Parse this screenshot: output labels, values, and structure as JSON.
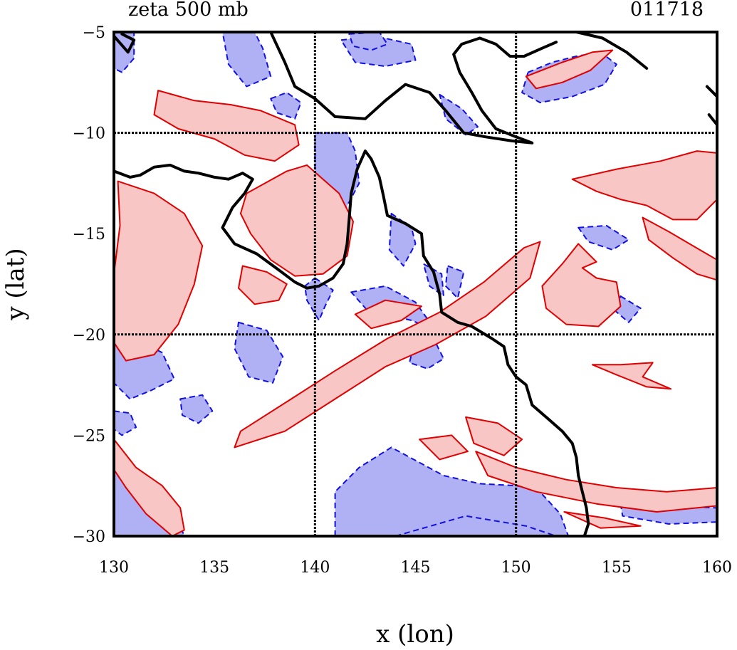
{
  "header": {
    "title": "zeta 500 mb",
    "timestamp": "011718"
  },
  "axes": {
    "xlabel": "x (lon)",
    "ylabel": "y (lat)",
    "xlim": [
      130,
      160
    ],
    "ylim": [
      -30,
      -5
    ],
    "xticks": [
      130,
      135,
      140,
      145,
      150,
      155,
      160
    ],
    "yticks": [
      -5,
      -10,
      -15,
      -20,
      -25,
      -30
    ],
    "xtick_labels": [
      "130",
      "135",
      "140",
      "145",
      "150",
      "155",
      "160"
    ],
    "ytick_labels": [
      "−5",
      "−10",
      "−15",
      "−20",
      "−25",
      "−30"
    ],
    "gridlines": {
      "lon": [
        140,
        150
      ],
      "lat": [
        -10,
        -20
      ],
      "style": "dotted"
    }
  },
  "colors": {
    "positive_fill": "#f9c6c6",
    "positive_line": "#e00000",
    "negative_fill": "#b0b0f4",
    "negative_line": "#1010e0",
    "coastline": "#000000",
    "grid": "#000000"
  },
  "coastline": [
    [
      [
        130.0,
        -11.9
      ],
      [
        130.8,
        -12.2
      ],
      [
        131.3,
        -12.1
      ],
      [
        132.0,
        -11.7
      ],
      [
        132.8,
        -11.6
      ],
      [
        133.5,
        -11.9
      ],
      [
        134.2,
        -12.0
      ],
      [
        135.0,
        -12.2
      ],
      [
        135.7,
        -12.3
      ],
      [
        136.4,
        -12.0
      ],
      [
        136.9,
        -12.3
      ],
      [
        136.5,
        -13.0
      ],
      [
        135.9,
        -13.7
      ],
      [
        135.4,
        -14.7
      ],
      [
        136.0,
        -15.5
      ],
      [
        137.1,
        -16.0
      ],
      [
        138.2,
        -16.8
      ],
      [
        139.0,
        -17.4
      ],
      [
        139.6,
        -17.7
      ],
      [
        140.2,
        -17.6
      ],
      [
        140.9,
        -17.2
      ],
      [
        141.4,
        -16.5
      ],
      [
        141.6,
        -15.5
      ],
      [
        141.7,
        -14.3
      ],
      [
        141.8,
        -13.0
      ],
      [
        142.1,
        -11.8
      ],
      [
        142.5,
        -10.9
      ],
      [
        142.8,
        -11.3
      ],
      [
        143.2,
        -12.2
      ],
      [
        143.4,
        -13.1
      ],
      [
        143.6,
        -14.1
      ],
      [
        144.5,
        -14.5
      ],
      [
        145.3,
        -15.0
      ],
      [
        145.4,
        -16.1
      ],
      [
        145.9,
        -16.9
      ],
      [
        146.2,
        -18.0
      ],
      [
        146.3,
        -18.9
      ],
      [
        147.1,
        -19.4
      ],
      [
        147.8,
        -19.6
      ],
      [
        148.8,
        -20.2
      ],
      [
        149.4,
        -20.6
      ],
      [
        149.6,
        -21.5
      ],
      [
        150.0,
        -22.1
      ],
      [
        150.5,
        -22.5
      ],
      [
        150.8,
        -23.5
      ],
      [
        151.5,
        -24.1
      ],
      [
        152.3,
        -24.8
      ],
      [
        152.8,
        -25.4
      ],
      [
        153.0,
        -26.1
      ],
      [
        153.1,
        -27.0
      ],
      [
        153.3,
        -27.8
      ],
      [
        153.5,
        -28.6
      ],
      [
        153.6,
        -29.4
      ],
      [
        153.4,
        -30.0
      ]
    ],
    [
      [
        141.0,
        -9.2
      ],
      [
        142.5,
        -9.3
      ],
      [
        143.5,
        -8.4
      ],
      [
        144.5,
        -7.6
      ],
      [
        145.7,
        -8.0
      ],
      [
        146.5,
        -8.9
      ],
      [
        147.4,
        -10.0
      ],
      [
        148.5,
        -10.2
      ],
      [
        149.8,
        -10.4
      ],
      [
        150.8,
        -10.5
      ],
      [
        150.0,
        -10.2
      ],
      [
        149.0,
        -9.8
      ],
      [
        148.3,
        -8.9
      ],
      [
        147.8,
        -8.0
      ],
      [
        147.2,
        -7.0
      ],
      [
        146.9,
        -6.1
      ],
      [
        147.3,
        -5.6
      ],
      [
        148.2,
        -5.3
      ],
      [
        149.0,
        -5.6
      ],
      [
        149.7,
        -6.2
      ],
      [
        150.4,
        -6.2
      ],
      [
        151.3,
        -5.8
      ],
      [
        152.0,
        -5.5
      ]
    ],
    [
      [
        137.8,
        -5.0
      ],
      [
        138.5,
        -6.5
      ],
      [
        139.0,
        -7.7
      ],
      [
        140.0,
        -8.3
      ],
      [
        141.0,
        -9.2
      ]
    ],
    [
      [
        153.0,
        -5.0
      ],
      [
        154.3,
        -5.3
      ],
      [
        155.5,
        -6.0
      ],
      [
        156.5,
        -6.8
      ]
    ],
    [
      [
        159.5,
        -7.7
      ],
      [
        160.0,
        -8.2
      ]
    ],
    [
      [
        130.0,
        -5.2
      ],
      [
        130.7,
        -6.0
      ],
      [
        131.0,
        -5.4
      ],
      [
        130.4,
        -5.1
      ]
    ],
    [
      [
        159.6,
        -9.1
      ],
      [
        160.0,
        -9.6
      ]
    ]
  ],
  "positive_regions": [
    [
      [
        130.2,
        -12.4
      ],
      [
        132.0,
        -13.0
      ],
      [
        133.5,
        -14.0
      ],
      [
        134.4,
        -15.6
      ],
      [
        134.0,
        -17.5
      ],
      [
        133.2,
        -19.5
      ],
      [
        132.0,
        -21.0
      ],
      [
        130.6,
        -21.3
      ],
      [
        130.0,
        -20.4
      ],
      [
        130.0,
        -17.0
      ],
      [
        130.3,
        -14.6
      ]
    ],
    [
      [
        132.2,
        -7.9
      ],
      [
        134.0,
        -8.4
      ],
      [
        135.8,
        -8.6
      ],
      [
        137.3,
        -8.9
      ],
      [
        139.0,
        -9.6
      ],
      [
        139.2,
        -10.6
      ],
      [
        138.0,
        -11.4
      ],
      [
        136.5,
        -11.1
      ],
      [
        135.0,
        -10.3
      ],
      [
        133.2,
        -9.8
      ],
      [
        132.0,
        -9.1
      ]
    ],
    [
      [
        136.6,
        -13.0
      ],
      [
        138.6,
        -11.9
      ],
      [
        139.6,
        -11.6
      ],
      [
        141.2,
        -13.0
      ],
      [
        141.9,
        -14.4
      ],
      [
        141.6,
        -16.1
      ],
      [
        140.4,
        -17.0
      ],
      [
        139.0,
        -17.1
      ],
      [
        137.8,
        -16.3
      ],
      [
        136.8,
        -15.0
      ],
      [
        136.3,
        -14.0
      ]
    ],
    [
      [
        136.4,
        -16.6
      ],
      [
        137.6,
        -16.9
      ],
      [
        138.6,
        -17.5
      ],
      [
        138.2,
        -18.3
      ],
      [
        137.0,
        -18.5
      ],
      [
        136.2,
        -17.7
      ]
    ],
    [
      [
        130.0,
        -25.2
      ],
      [
        131.1,
        -26.6
      ],
      [
        132.4,
        -27.5
      ],
      [
        133.3,
        -28.6
      ],
      [
        133.5,
        -29.7
      ],
      [
        132.9,
        -30.0
      ],
      [
        131.6,
        -28.9
      ],
      [
        130.6,
        -27.6
      ],
      [
        130.0,
        -26.7
      ]
    ],
    [
      [
        136.0,
        -25.6
      ],
      [
        138.5,
        -24.8
      ],
      [
        141.0,
        -23.2
      ],
      [
        143.5,
        -21.6
      ],
      [
        146.0,
        -20.5
      ],
      [
        148.5,
        -19.1
      ],
      [
        150.7,
        -17.2
      ],
      [
        151.2,
        -15.4
      ],
      [
        150.4,
        -15.7
      ],
      [
        148.4,
        -17.4
      ],
      [
        146.2,
        -18.9
      ],
      [
        143.6,
        -20.2
      ],
      [
        141.0,
        -21.8
      ],
      [
        138.5,
        -23.4
      ],
      [
        136.3,
        -24.8
      ]
    ],
    [
      [
        142.0,
        -19.0
      ],
      [
        143.5,
        -18.3
      ],
      [
        145.3,
        -18.6
      ],
      [
        144.3,
        -19.3
      ],
      [
        142.8,
        -19.7
      ]
    ],
    [
      [
        148.0,
        -25.8
      ],
      [
        150.0,
        -26.6
      ],
      [
        152.5,
        -27.2
      ],
      [
        155.0,
        -27.6
      ],
      [
        157.5,
        -27.8
      ],
      [
        160.0,
        -27.6
      ],
      [
        160.0,
        -28.5
      ],
      [
        157.0,
        -28.8
      ],
      [
        154.0,
        -28.4
      ],
      [
        151.0,
        -27.8
      ],
      [
        148.6,
        -27.0
      ]
    ],
    [
      [
        147.5,
        -24.1
      ],
      [
        149.1,
        -24.4
      ],
      [
        150.3,
        -25.2
      ],
      [
        149.4,
        -26.0
      ],
      [
        147.9,
        -25.4
      ]
    ],
    [
      [
        145.2,
        -25.2
      ],
      [
        146.8,
        -25.0
      ],
      [
        147.6,
        -25.8
      ],
      [
        146.2,
        -26.2
      ]
    ],
    [
      [
        152.8,
        -12.3
      ],
      [
        155.0,
        -11.8
      ],
      [
        157.2,
        -11.4
      ],
      [
        159.0,
        -10.9
      ],
      [
        160.0,
        -11.0
      ],
      [
        160.0,
        -13.3
      ],
      [
        159.0,
        -14.3
      ],
      [
        157.8,
        -14.3
      ],
      [
        156.5,
        -13.6
      ],
      [
        155.2,
        -13.3
      ],
      [
        154.0,
        -12.9
      ]
    ],
    [
      [
        156.3,
        -14.2
      ],
      [
        157.6,
        -14.9
      ],
      [
        158.8,
        -15.6
      ],
      [
        160.0,
        -16.3
      ],
      [
        160.0,
        -17.3
      ],
      [
        159.0,
        -17.0
      ],
      [
        157.8,
        -16.2
      ],
      [
        156.6,
        -15.3
      ]
    ],
    [
      [
        151.3,
        -17.6
      ],
      [
        152.3,
        -16.5
      ],
      [
        153.1,
        -15.5
      ],
      [
        154.0,
        -16.4
      ],
      [
        153.3,
        -16.7
      ],
      [
        154.0,
        -17.2
      ],
      [
        155.0,
        -17.4
      ],
      [
        155.2,
        -18.6
      ],
      [
        154.1,
        -19.6
      ],
      [
        152.5,
        -19.5
      ],
      [
        151.5,
        -18.7
      ]
    ],
    [
      [
        153.8,
        -21.5
      ],
      [
        155.2,
        -21.5
      ],
      [
        156.8,
        -21.4
      ],
      [
        156.3,
        -22.1
      ],
      [
        157.7,
        -22.7
      ],
      [
        156.5,
        -22.6
      ],
      [
        155.0,
        -22.0
      ]
    ],
    [
      [
        150.5,
        -7.2
      ],
      [
        152.3,
        -6.5
      ],
      [
        153.8,
        -6.0
      ],
      [
        154.8,
        -5.9
      ],
      [
        153.7,
        -6.9
      ],
      [
        152.3,
        -7.5
      ],
      [
        151.0,
        -7.8
      ]
    ],
    [
      [
        152.4,
        -28.8
      ],
      [
        154.4,
        -29.1
      ],
      [
        156.2,
        -29.5
      ],
      [
        154.2,
        -29.6
      ]
    ]
  ],
  "negative_regions": [
    [
      [
        130.0,
        -5.0
      ],
      [
        131.0,
        -5.0
      ],
      [
        131.0,
        -6.3
      ],
      [
        130.4,
        -7.0
      ],
      [
        130.0,
        -6.8
      ]
    ],
    [
      [
        135.4,
        -5.0
      ],
      [
        137.0,
        -5.0
      ],
      [
        137.4,
        -5.8
      ],
      [
        137.8,
        -7.2
      ],
      [
        136.6,
        -7.7
      ],
      [
        135.7,
        -6.6
      ]
    ],
    [
      [
        141.3,
        -5.4
      ],
      [
        143.0,
        -5.2
      ],
      [
        144.8,
        -5.6
      ],
      [
        145.0,
        -6.4
      ],
      [
        143.5,
        -6.7
      ],
      [
        142.0,
        -6.5
      ]
    ],
    [
      [
        140.0,
        -10.0
      ],
      [
        141.6,
        -10.0
      ],
      [
        142.0,
        -10.9
      ],
      [
        142.2,
        -12.5
      ],
      [
        141.5,
        -13.8
      ],
      [
        140.8,
        -14.7
      ],
      [
        140.0,
        -14.1
      ]
    ],
    [
      [
        140.0,
        -17.2
      ],
      [
        140.9,
        -17.8
      ],
      [
        140.5,
        -18.6
      ],
      [
        140.2,
        -19.3
      ],
      [
        139.6,
        -18.3
      ],
      [
        139.5,
        -17.6
      ]
    ],
    [
      [
        141.8,
        -17.9
      ],
      [
        143.5,
        -17.6
      ],
      [
        145.0,
        -18.4
      ],
      [
        146.0,
        -19.8
      ],
      [
        144.8,
        -19.3
      ],
      [
        142.6,
        -18.8
      ]
    ],
    [
      [
        143.8,
        -14.0
      ],
      [
        144.8,
        -14.7
      ],
      [
        145.0,
        -15.5
      ],
      [
        144.4,
        -16.6
      ],
      [
        143.7,
        -15.8
      ]
    ],
    [
      [
        145.4,
        -16.5
      ],
      [
        146.3,
        -17.0
      ],
      [
        146.4,
        -18.1
      ],
      [
        145.7,
        -17.6
      ]
    ],
    [
      [
        130.0,
        -20.0
      ],
      [
        131.2,
        -20.3
      ],
      [
        132.4,
        -20.9
      ],
      [
        133.0,
        -22.2
      ],
      [
        131.8,
        -22.8
      ],
      [
        130.8,
        -23.2
      ],
      [
        130.0,
        -22.4
      ]
    ],
    [
      [
        130.0,
        -26.6
      ],
      [
        130.6,
        -27.6
      ],
      [
        132.0,
        -28.6
      ],
      [
        133.3,
        -29.5
      ],
      [
        133.5,
        -30.0
      ],
      [
        130.0,
        -30.0
      ]
    ],
    [
      [
        136.2,
        -19.4
      ],
      [
        137.6,
        -19.8
      ],
      [
        138.4,
        -21.1
      ],
      [
        137.9,
        -22.4
      ],
      [
        136.7,
        -22.1
      ],
      [
        136.0,
        -20.7
      ]
    ],
    [
      [
        141.0,
        -30.0
      ],
      [
        141.0,
        -27.8
      ],
      [
        142.2,
        -26.6
      ],
      [
        143.8,
        -25.6
      ],
      [
        145.1,
        -26.3
      ],
      [
        146.4,
        -27.0
      ],
      [
        148.2,
        -27.4
      ],
      [
        150.0,
        -27.5
      ],
      [
        151.1,
        -27.7
      ],
      [
        152.2,
        -28.9
      ],
      [
        152.6,
        -30.0
      ]
    ],
    [
      [
        144.0,
        -30.0
      ],
      [
        147.5,
        -29.0
      ],
      [
        150.5,
        -29.5
      ],
      [
        152.0,
        -30.0
      ]
    ],
    [
      [
        155.2,
        -28.4
      ],
      [
        157.4,
        -28.5
      ],
      [
        160.0,
        -28.6
      ],
      [
        160.0,
        -29.3
      ],
      [
        157.6,
        -29.4
      ],
      [
        155.3,
        -29.0
      ]
    ],
    [
      [
        150.6,
        -7.0
      ],
      [
        151.8,
        -6.5
      ],
      [
        153.0,
        -6.2
      ],
      [
        154.2,
        -6.0
      ],
      [
        155.0,
        -6.6
      ],
      [
        154.4,
        -7.6
      ],
      [
        152.8,
        -8.2
      ],
      [
        151.2,
        -8.5
      ],
      [
        150.3,
        -8.0
      ]
    ],
    [
      [
        146.2,
        -8.1
      ],
      [
        147.3,
        -8.8
      ],
      [
        148.1,
        -9.7
      ],
      [
        147.5,
        -10.1
      ],
      [
        146.5,
        -9.3
      ]
    ],
    [
      [
        153.1,
        -14.7
      ],
      [
        154.5,
        -14.6
      ],
      [
        155.6,
        -15.3
      ],
      [
        154.8,
        -15.8
      ],
      [
        153.6,
        -15.4
      ]
    ],
    [
      [
        155.2,
        -18.1
      ],
      [
        156.2,
        -18.7
      ],
      [
        155.6,
        -19.4
      ],
      [
        154.9,
        -18.8
      ]
    ],
    [
      [
        146.6,
        -16.6
      ],
      [
        147.4,
        -16.9
      ],
      [
        147.1,
        -18.2
      ],
      [
        146.5,
        -17.6
      ]
    ],
    [
      [
        144.9,
        -20.6
      ],
      [
        145.9,
        -20.2
      ],
      [
        146.4,
        -21.2
      ],
      [
        145.6,
        -21.7
      ],
      [
        144.7,
        -21.4
      ]
    ],
    [
      [
        141.7,
        -5.1
      ],
      [
        143.2,
        -5.0
      ],
      [
        143.6,
        -5.6
      ],
      [
        142.8,
        -5.9
      ],
      [
        141.9,
        -5.7
      ]
    ],
    [
      [
        137.8,
        -8.3
      ],
      [
        138.6,
        -8.0
      ],
      [
        139.3,
        -8.5
      ],
      [
        139.0,
        -9.3
      ],
      [
        138.1,
        -9.0
      ]
    ],
    [
      [
        133.3,
        -23.2
      ],
      [
        134.4,
        -23.0
      ],
      [
        134.9,
        -23.8
      ],
      [
        134.2,
        -24.4
      ],
      [
        133.4,
        -24.0
      ]
    ],
    [
      [
        130.0,
        -23.8
      ],
      [
        130.8,
        -23.9
      ],
      [
        131.1,
        -24.6
      ],
      [
        130.4,
        -25.0
      ],
      [
        130.0,
        -24.7
      ]
    ],
    [
      [
        150.3,
        -26.8
      ],
      [
        151.4,
        -27.0
      ],
      [
        151.8,
        -27.6
      ],
      [
        150.7,
        -27.6
      ]
    ]
  ]
}
